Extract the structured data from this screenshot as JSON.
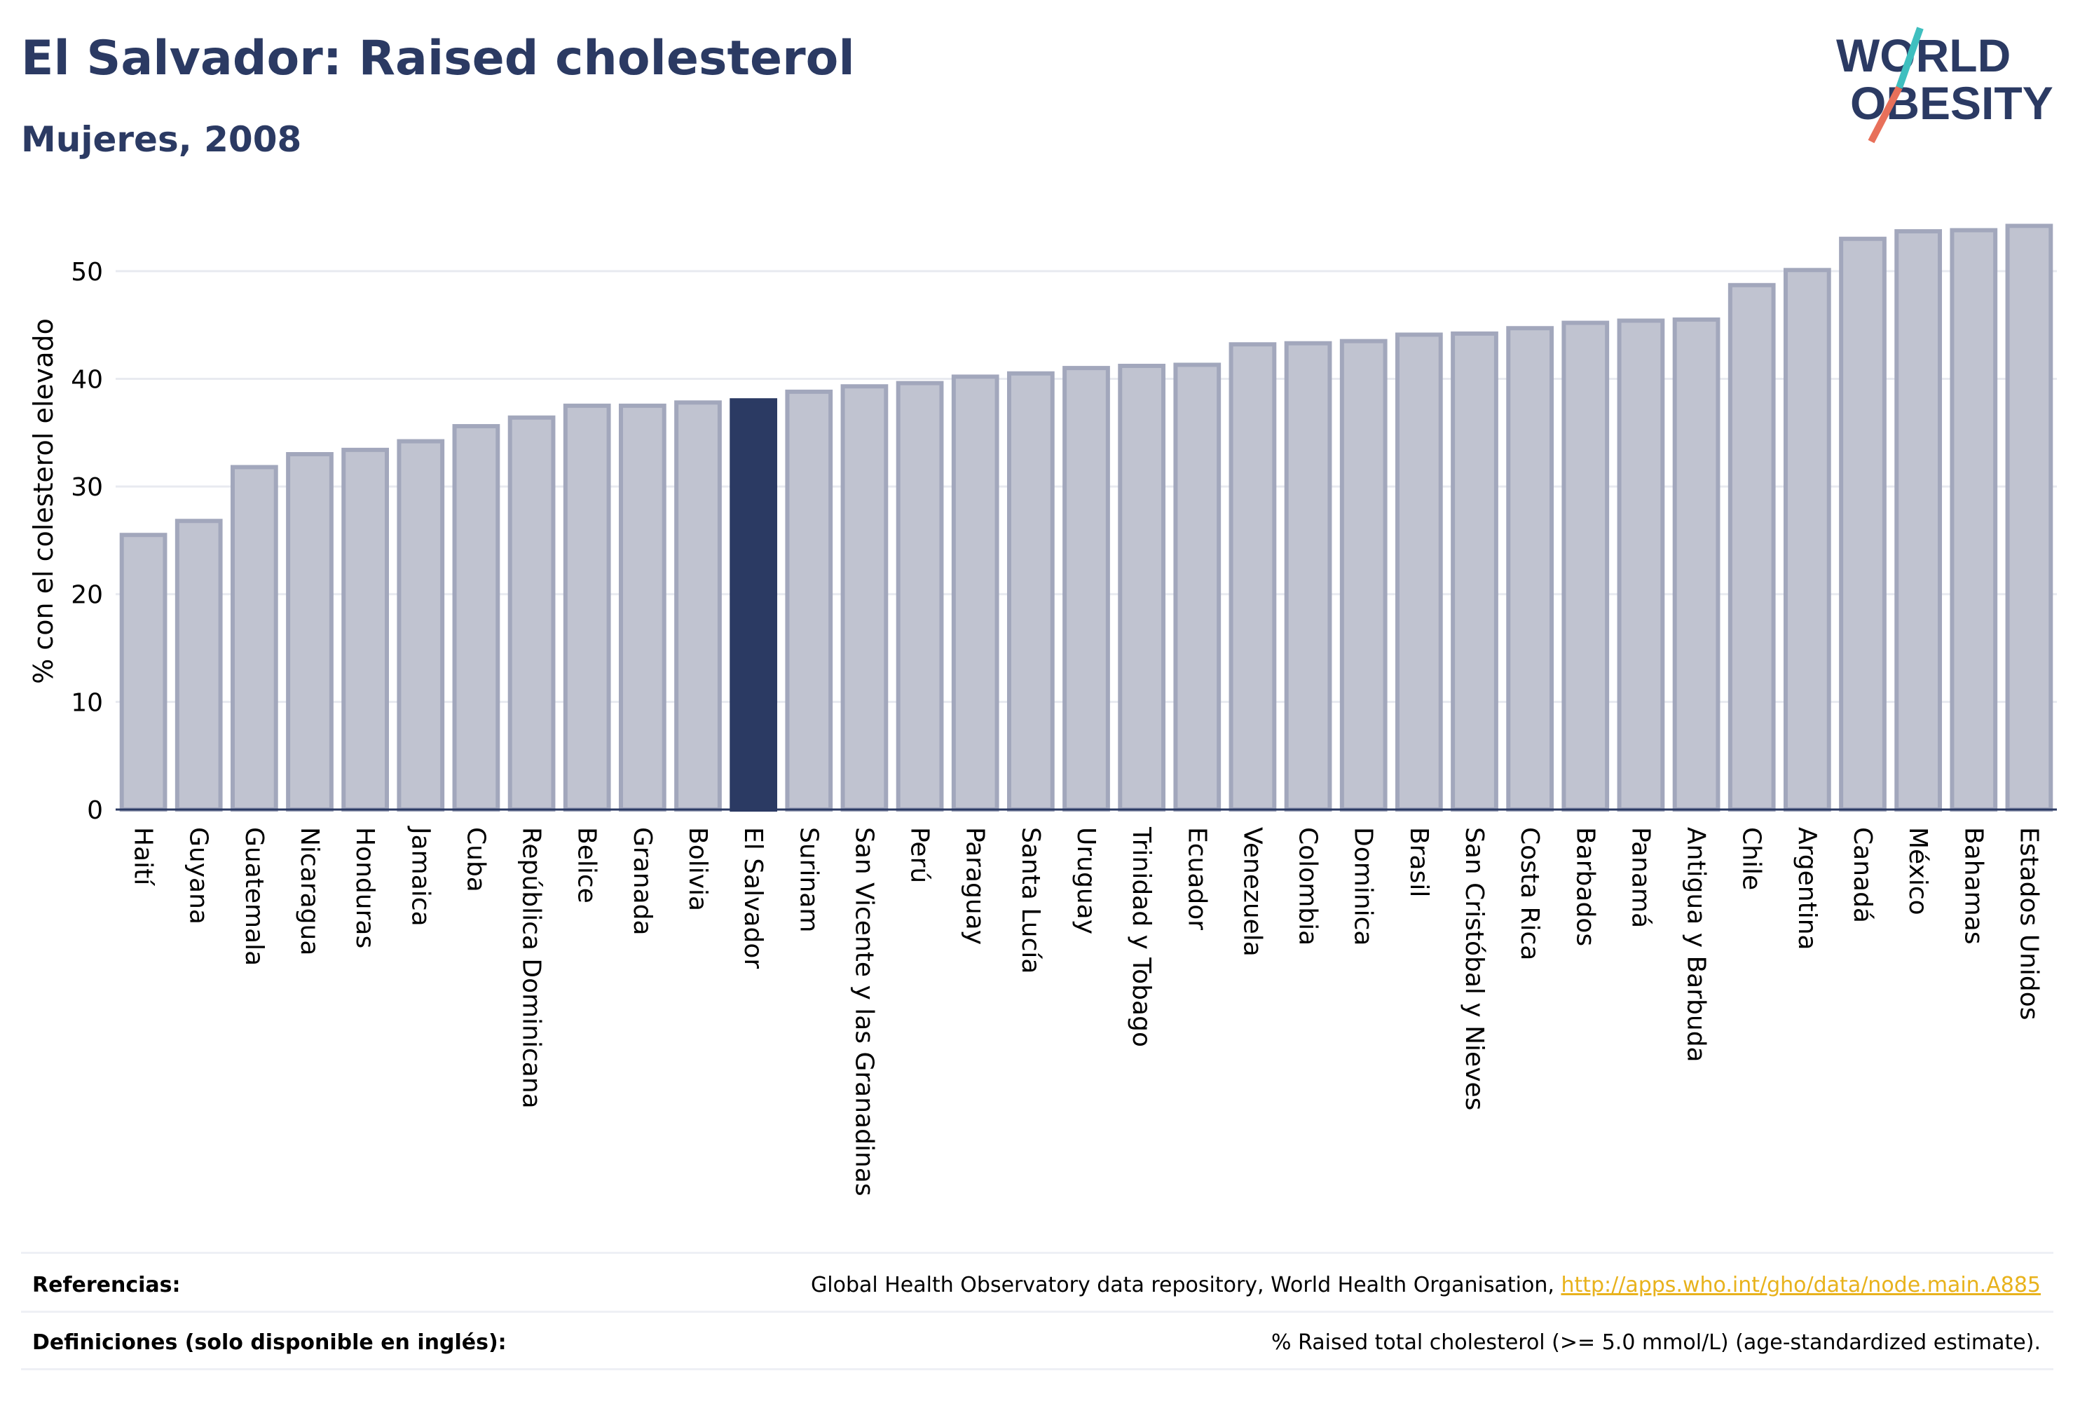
{
  "header": {
    "title": "El Salvador: Raised cholesterol",
    "subtitle": "Mujeres, 2008"
  },
  "logo": {
    "line1": "WORLD",
    "line2": "OBESITY",
    "colors": {
      "text": "#2b3a63",
      "slash_top": "#3fbfbf",
      "slash_bottom": "#e8705a"
    }
  },
  "footer": {
    "references_label": "Referencias:",
    "references_text": "Global Health Observatory data repository, World Health Organisation, ",
    "references_link": "http://apps.who.int/gho/data/node.main.A885",
    "definitions_label": "Definiciones (solo disponible en inglés):",
    "definitions_text": "% Raised total cholesterol (>= 5.0 mmol/L) (age-standardized estimate)."
  },
  "chart_data": {
    "type": "bar",
    "ylabel": "% con el colesterol elevado",
    "xlabel": "",
    "ylim": [
      0,
      55
    ],
    "yticks": [
      0,
      10,
      20,
      30,
      40,
      50
    ],
    "grid": true,
    "highlight": "El Salvador",
    "colors": {
      "bar": "#c0c3d0",
      "bar_edge": "#a2a7bc",
      "highlight": "#2b3a63"
    },
    "categories": [
      "Haití",
      "Guyana",
      "Guatemala",
      "Nicaragua",
      "Honduras",
      "Jamaica",
      "Cuba",
      "República Dominicana",
      "Belice",
      "Granada",
      "Bolivia",
      "El Salvador",
      "Surinam",
      "San Vicente y las Granadinas",
      "Perú",
      "Paraguay",
      "Santa Lucía",
      "Uruguay",
      "Trinidad y Tobago",
      "Ecuador",
      "Venezuela",
      "Colombia",
      "Dominica",
      "Brasil",
      "San Cristóbal y Nieves",
      "Costa Rica",
      "Barbados",
      "Panamá",
      "Antigua y Barbuda",
      "Chile",
      "Argentina",
      "Canadá",
      "México",
      "Bahamas",
      "Estados Unidos"
    ],
    "values": [
      25.5,
      26.8,
      31.8,
      33.0,
      33.4,
      34.2,
      35.6,
      36.4,
      37.5,
      37.5,
      37.8,
      38.0,
      38.8,
      39.3,
      39.6,
      40.2,
      40.5,
      41.0,
      41.2,
      41.3,
      43.2,
      43.3,
      43.5,
      44.1,
      44.2,
      44.7,
      45.2,
      45.4,
      45.5,
      48.7,
      50.1,
      53.0,
      53.7,
      53.8,
      54.2
    ]
  }
}
